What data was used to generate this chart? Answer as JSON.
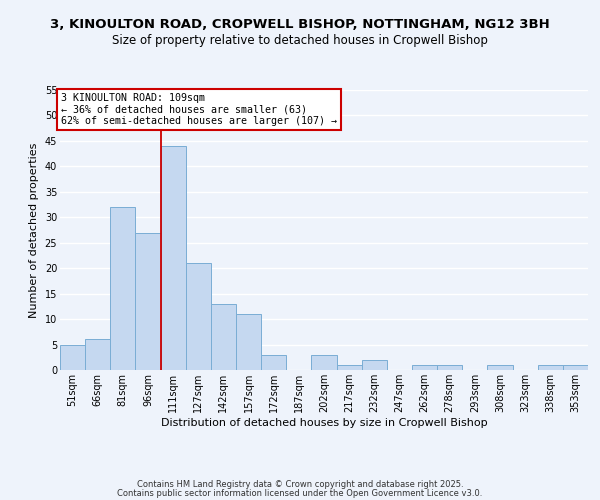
{
  "title1": "3, KINOULTON ROAD, CROPWELL BISHOP, NOTTINGHAM, NG12 3BH",
  "title2": "Size of property relative to detached houses in Cropwell Bishop",
  "xlabel": "Distribution of detached houses by size in Cropwell Bishop",
  "ylabel": "Number of detached properties",
  "bar_labels": [
    "51sqm",
    "66sqm",
    "81sqm",
    "96sqm",
    "111sqm",
    "127sqm",
    "142sqm",
    "157sqm",
    "172sqm",
    "187sqm",
    "202sqm",
    "217sqm",
    "232sqm",
    "247sqm",
    "262sqm",
    "278sqm",
    "293sqm",
    "308sqm",
    "323sqm",
    "338sqm",
    "353sqm"
  ],
  "bar_values": [
    5,
    6,
    32,
    27,
    44,
    21,
    13,
    11,
    3,
    0,
    3,
    1,
    2,
    0,
    1,
    1,
    0,
    1,
    0,
    1,
    1
  ],
  "bar_color": "#c5d8f0",
  "bar_edge_color": "#7aadd4",
  "red_line_index": 4,
  "annotation_title": "3 KINOULTON ROAD: 109sqm",
  "annotation_line1": "← 36% of detached houses are smaller (63)",
  "annotation_line2": "62% of semi-detached houses are larger (107) →",
  "annotation_box_color": "#ffffff",
  "annotation_box_edge": "#cc0000",
  "ylim": [
    0,
    55
  ],
  "yticks": [
    0,
    5,
    10,
    15,
    20,
    25,
    30,
    35,
    40,
    45,
    50,
    55
  ],
  "footer1": "Contains HM Land Registry data © Crown copyright and database right 2025.",
  "footer2": "Contains public sector information licensed under the Open Government Licence v3.0.",
  "bg_color": "#eef3fb",
  "grid_color": "#ffffff",
  "title1_fontsize": 9.5,
  "title2_fontsize": 8.5,
  "xlabel_fontsize": 8,
  "ylabel_fontsize": 8,
  "footer_fontsize": 6,
  "tick_fontsize": 7
}
